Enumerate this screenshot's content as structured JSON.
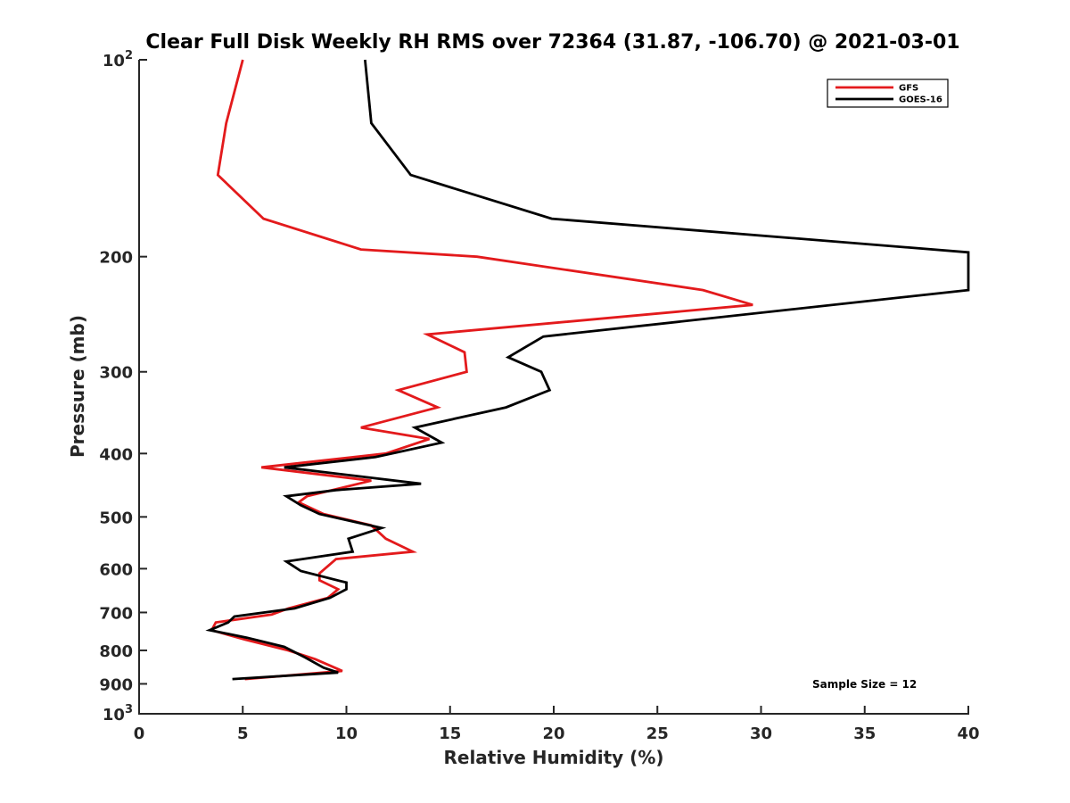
{
  "chart_data": {
    "type": "line",
    "title": "Clear Full Disk Weekly RH RMS over 72364 (31.87, -106.70) @ 2021-03-01",
    "xlabel": "Relative Humidity (%)",
    "ylabel": "Pressure (mb)",
    "xlim": [
      0,
      40
    ],
    "ylim": [
      100,
      1000
    ],
    "yscale": "log",
    "y_reversed": true,
    "x_ticks": [
      "0",
      "5",
      "10",
      "15",
      "20",
      "25",
      "30",
      "35",
      "40"
    ],
    "y_ticks": [
      {
        "value": 100,
        "label": "10",
        "sup": "2"
      },
      {
        "value": 200,
        "label": "200",
        "sup": ""
      },
      {
        "value": 300,
        "label": "300",
        "sup": ""
      },
      {
        "value": 400,
        "label": "400",
        "sup": ""
      },
      {
        "value": 500,
        "label": "500",
        "sup": ""
      },
      {
        "value": 600,
        "label": "600",
        "sup": ""
      },
      {
        "value": 700,
        "label": "700",
        "sup": ""
      },
      {
        "value": 800,
        "label": "800",
        "sup": ""
      },
      {
        "value": 900,
        "label": "900",
        "sup": ""
      },
      {
        "value": 1000,
        "label": "10",
        "sup": "3"
      }
    ],
    "grid": false,
    "legend_position": "top-right",
    "annotation": "Sample Size = 12",
    "series": [
      {
        "name": "GFS",
        "color": "#e31a1c",
        "points": [
          [
            5.0,
            100
          ],
          [
            4.2,
            125
          ],
          [
            3.8,
            150
          ],
          [
            6.0,
            175
          ],
          [
            10.7,
            195
          ],
          [
            16.3,
            200
          ],
          [
            27.2,
            225
          ],
          [
            29.6,
            237
          ],
          [
            13.9,
            263
          ],
          [
            15.7,
            280
          ],
          [
            15.8,
            300
          ],
          [
            12.5,
            320
          ],
          [
            14.4,
            340
          ],
          [
            10.7,
            365
          ],
          [
            14.0,
            380
          ],
          [
            11.9,
            400
          ],
          [
            5.9,
            420
          ],
          [
            11.2,
            440
          ],
          [
            8.1,
            465
          ],
          [
            7.7,
            475
          ],
          [
            8.9,
            495
          ],
          [
            11.2,
            515
          ],
          [
            11.9,
            540
          ],
          [
            13.2,
            565
          ],
          [
            9.5,
            580
          ],
          [
            8.7,
            610
          ],
          [
            8.7,
            625
          ],
          [
            9.6,
            645
          ],
          [
            9.1,
            665
          ],
          [
            7.2,
            690
          ],
          [
            6.4,
            705
          ],
          [
            3.7,
            725
          ],
          [
            3.5,
            745
          ],
          [
            5.1,
            770
          ],
          [
            7.2,
            800
          ],
          [
            8.5,
            825
          ],
          [
            9.8,
            860
          ],
          [
            5.1,
            885
          ]
        ]
      },
      {
        "name": "GOES-16",
        "color": "#000000",
        "points": [
          [
            10.9,
            100
          ],
          [
            11.2,
            125
          ],
          [
            13.1,
            150
          ],
          [
            19.9,
            175
          ],
          [
            40.0,
            197
          ],
          [
            40.0,
            225
          ],
          [
            19.5,
            265
          ],
          [
            17.8,
            285
          ],
          [
            19.4,
            300
          ],
          [
            19.8,
            320
          ],
          [
            17.7,
            340
          ],
          [
            13.3,
            365
          ],
          [
            14.6,
            385
          ],
          [
            11.4,
            405
          ],
          [
            7.0,
            420
          ],
          [
            13.6,
            445
          ],
          [
            9.5,
            455
          ],
          [
            7.1,
            465
          ],
          [
            7.8,
            480
          ],
          [
            8.7,
            495
          ],
          [
            11.7,
            520
          ],
          [
            10.1,
            540
          ],
          [
            10.3,
            565
          ],
          [
            7.1,
            585
          ],
          [
            7.8,
            605
          ],
          [
            10.0,
            630
          ],
          [
            10.0,
            645
          ],
          [
            9.2,
            665
          ],
          [
            7.5,
            690
          ],
          [
            4.6,
            710
          ],
          [
            4.3,
            725
          ],
          [
            3.4,
            745
          ],
          [
            5.2,
            765
          ],
          [
            7.0,
            790
          ],
          [
            8.0,
            820
          ],
          [
            8.9,
            850
          ],
          [
            9.6,
            865
          ],
          [
            4.5,
            885
          ]
        ]
      }
    ]
  }
}
